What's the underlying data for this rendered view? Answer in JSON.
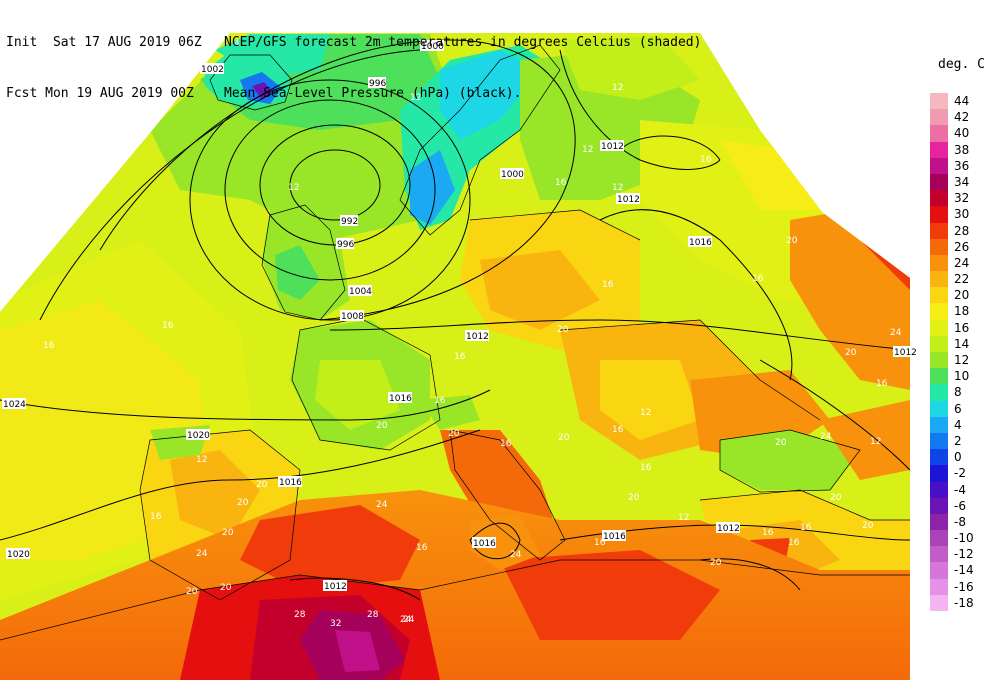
{
  "header": {
    "init_line": "Init  Sat 17 AUG 2019 06Z",
    "fcst_line": "Fcst Mon 19 AUG 2019 00Z",
    "title_line1": "NCEP/GFS forecast 2m temperatures in degrees Celcius (shaded)",
    "title_line2": "Mean Sea-Level Pressure (hPa) (black)."
  },
  "legend": {
    "title": "deg. C",
    "entries": [
      {
        "label": "44",
        "color": "#f5b8c0"
      },
      {
        "label": "42",
        "color": "#f19bb0"
      },
      {
        "label": "40",
        "color": "#ec6fa3"
      },
      {
        "label": "38",
        "color": "#e6249c"
      },
      {
        "label": "36",
        "color": "#c0108a"
      },
      {
        "label": "34",
        "color": "#a5005a"
      },
      {
        "label": "32",
        "color": "#c3002c"
      },
      {
        "label": "30",
        "color": "#e50f0f"
      },
      {
        "label": "28",
        "color": "#f03c0a"
      },
      {
        "label": "26",
        "color": "#f46a0a"
      },
      {
        "label": "24",
        "color": "#f8920c"
      },
      {
        "label": "22",
        "color": "#fab40f"
      },
      {
        "label": "20",
        "color": "#f9d512"
      },
      {
        "label": "18",
        "color": "#f6ec16"
      },
      {
        "label": "16",
        "color": "#e1f015"
      },
      {
        "label": "14",
        "color": "#c2ee1a"
      },
      {
        "label": "12",
        "color": "#98e627"
      },
      {
        "label": "10",
        "color": "#4ee05a"
      },
      {
        "label": "8",
        "color": "#26e8a6"
      },
      {
        "label": "6",
        "color": "#1ed7e6"
      },
      {
        "label": "4",
        "color": "#1aa9f2"
      },
      {
        "label": "2",
        "color": "#1478ee"
      },
      {
        "label": "0",
        "color": "#0f45e6"
      },
      {
        "label": "-2",
        "color": "#1c14d6"
      },
      {
        "label": "-4",
        "color": "#4a10c8"
      },
      {
        "label": "-6",
        "color": "#6a14b6"
      },
      {
        "label": "-8",
        "color": "#8c24a8"
      },
      {
        "label": "-10",
        "color": "#a844b6"
      },
      {
        "label": "-12",
        "color": "#c25cc9"
      },
      {
        "label": "-14",
        "color": "#d577da"
      },
      {
        "label": "-16",
        "color": "#e592e6"
      },
      {
        "label": "-18",
        "color": "#f3b4f2"
      }
    ]
  },
  "pressure_labels": [
    "1000",
    "1002",
    "996",
    "1012",
    "1000",
    "1012",
    "992",
    "996",
    "1016",
    "1004",
    "1008",
    "1012",
    "1016",
    "1024",
    "1020",
    "1016",
    "1012",
    "1016",
    "1020",
    "1016",
    "1012",
    "1012"
  ],
  "temperature_labels": [
    "4",
    "12",
    "12",
    "16",
    "12",
    "12",
    "12",
    "16",
    "16",
    "16",
    "20",
    "16",
    "20",
    "24",
    "16",
    "20",
    "24",
    "16",
    "12",
    "20",
    "16",
    "20",
    "24",
    "20",
    "16",
    "16",
    "20",
    "16",
    "16",
    "12",
    "12",
    "20",
    "20",
    "16",
    "20",
    "16",
    "12",
    "16",
    "16",
    "20",
    "20",
    "24",
    "24",
    "16",
    "20",
    "24",
    "16",
    "20",
    "20",
    "24",
    "20",
    "28",
    "28",
    "32",
    "24"
  ]
}
